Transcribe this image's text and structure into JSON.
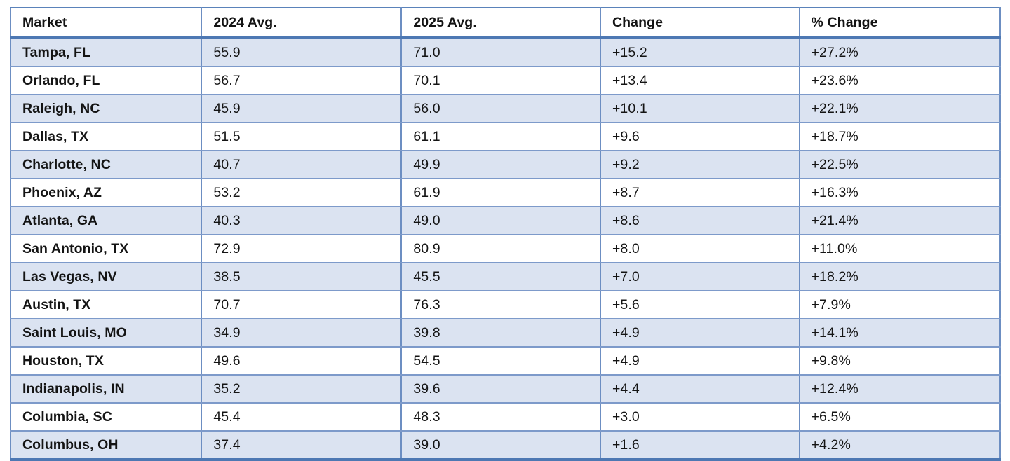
{
  "table": {
    "columns": [
      "Market",
      "2024 Avg.",
      "2025 Avg.",
      "Change",
      "% Change"
    ],
    "rows": [
      {
        "market": "Tampa, FL",
        "avg_2024": "55.9",
        "avg_2025": "71.0",
        "change": "+15.2",
        "pct_change": "+27.2%"
      },
      {
        "market": "Orlando, FL",
        "avg_2024": "56.7",
        "avg_2025": "70.1",
        "change": "+13.4",
        "pct_change": "+23.6%"
      },
      {
        "market": "Raleigh, NC",
        "avg_2024": "45.9",
        "avg_2025": "56.0",
        "change": "+10.1",
        "pct_change": "+22.1%"
      },
      {
        "market": "Dallas, TX",
        "avg_2024": "51.5",
        "avg_2025": "61.1",
        "change": "+9.6",
        "pct_change": "+18.7%"
      },
      {
        "market": "Charlotte, NC",
        "avg_2024": "40.7",
        "avg_2025": "49.9",
        "change": "+9.2",
        "pct_change": "+22.5%"
      },
      {
        "market": "Phoenix, AZ",
        "avg_2024": "53.2",
        "avg_2025": "61.9",
        "change": "+8.7",
        "pct_change": "+16.3%"
      },
      {
        "market": "Atlanta, GA",
        "avg_2024": "40.3",
        "avg_2025": "49.0",
        "change": "+8.6",
        "pct_change": "+21.4%"
      },
      {
        "market": "San Antonio, TX",
        "avg_2024": "72.9",
        "avg_2025": "80.9",
        "change": "+8.0",
        "pct_change": "+11.0%"
      },
      {
        "market": "Las Vegas, NV",
        "avg_2024": "38.5",
        "avg_2025": "45.5",
        "change": "+7.0",
        "pct_change": "+18.2%"
      },
      {
        "market": "Austin, TX",
        "avg_2024": "70.7",
        "avg_2025": "76.3",
        "change": "+5.6",
        "pct_change": "+7.9%"
      },
      {
        "market": "Saint Louis, MO",
        "avg_2024": "34.9",
        "avg_2025": "39.8",
        "change": "+4.9",
        "pct_change": "+14.1%"
      },
      {
        "market": "Houston, TX",
        "avg_2024": "49.6",
        "avg_2025": "54.5",
        "change": "+4.9",
        "pct_change": "+9.8%"
      },
      {
        "market": "Indianapolis, IN",
        "avg_2024": "35.2",
        "avg_2025": "39.6",
        "change": "+4.4",
        "pct_change": "+12.4%"
      },
      {
        "market": "Columbia, SC",
        "avg_2024": "45.4",
        "avg_2025": "48.3",
        "change": "+3.0",
        "pct_change": "+6.5%"
      },
      {
        "market": "Columbus, OH",
        "avg_2024": "37.4",
        "avg_2025": "39.0",
        "change": "+1.6",
        "pct_change": "+4.2%"
      }
    ]
  },
  "colors": {
    "row_alt_fill": "#dbe3f1",
    "grid_border": "#6c8ec2",
    "strong_border": "#4d78b3",
    "text": "#141414"
  },
  "chart_data": {
    "type": "table",
    "title": "",
    "columns": [
      "Market",
      "2024 Avg.",
      "2025 Avg.",
      "Change",
      "% Change"
    ],
    "rows": [
      [
        "Tampa, FL",
        55.9,
        71.0,
        15.2,
        27.2
      ],
      [
        "Orlando, FL",
        56.7,
        70.1,
        13.4,
        23.6
      ],
      [
        "Raleigh, NC",
        45.9,
        56.0,
        10.1,
        22.1
      ],
      [
        "Dallas, TX",
        51.5,
        61.1,
        9.6,
        18.7
      ],
      [
        "Charlotte, NC",
        40.7,
        49.9,
        9.2,
        22.5
      ],
      [
        "Phoenix, AZ",
        53.2,
        61.9,
        8.7,
        16.3
      ],
      [
        "Atlanta, GA",
        40.3,
        49.0,
        8.6,
        21.4
      ],
      [
        "San Antonio, TX",
        72.9,
        80.9,
        8.0,
        11.0
      ],
      [
        "Las Vegas, NV",
        38.5,
        45.5,
        7.0,
        18.2
      ],
      [
        "Austin, TX",
        70.7,
        76.3,
        5.6,
        7.9
      ],
      [
        "Saint Louis, MO",
        34.9,
        39.8,
        4.9,
        14.1
      ],
      [
        "Houston, TX",
        49.6,
        54.5,
        4.9,
        9.8
      ],
      [
        "Indianapolis, IN",
        35.2,
        39.6,
        4.4,
        12.4
      ],
      [
        "Columbia, SC",
        45.4,
        48.3,
        3.0,
        6.5
      ],
      [
        "Columbus, OH",
        37.4,
        39.0,
        1.6,
        4.2
      ]
    ],
    "notes": "Positive changes shown with leading + sign; % Change column values rendered with trailing % sign."
  }
}
